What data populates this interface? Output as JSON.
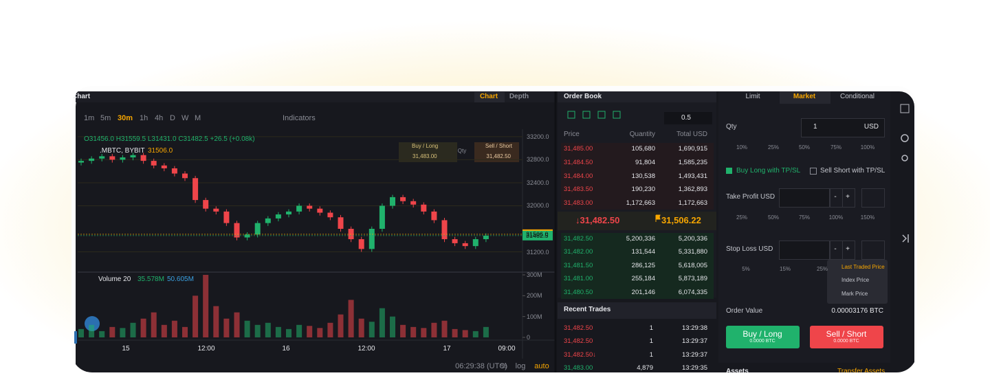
{
  "chart_panel": {
    "title": "Chart",
    "tabs": [
      "Chart",
      "Depth"
    ],
    "intervals": [
      "1m",
      "5m",
      "30m",
      "1h",
      "4h",
      "D",
      "W",
      "M"
    ],
    "active_interval": "30m",
    "indicators": "Indicators",
    "ohlc_summary": "O31456.0 H31559.5 L31431.0 C31482.5 +26.5 (+0.08k)",
    "symbol": ".MBTC, BYBIT",
    "symbol_price": "31506.0",
    "quick_trade": {
      "buy_label": "Buy / Long",
      "buy_price": "31,483.00",
      "qty": "Qty",
      "sell_label": "Sell / Short",
      "sell_price": "31,482.50"
    },
    "volume_label": "Volume 20",
    "volume_figures": [
      "35.578M",
      "50.605M"
    ],
    "x_labels": [
      "15",
      "12:00",
      "16",
      "12:00",
      "17",
      "09:00"
    ],
    "footer": [
      "06:29:38 (UTC)",
      "%",
      "log",
      "auto"
    ]
  },
  "chart_data": {
    "type": "candlestick",
    "up_color": "#20b26c",
    "down_color": "#ef454a",
    "grid": true,
    "ohlc": [
      [
        32750,
        32820,
        32700,
        32780
      ],
      [
        32780,
        32860,
        32730,
        32820
      ],
      [
        32820,
        32900,
        32770,
        32860
      ],
      [
        32860,
        32900,
        32750,
        32800
      ],
      [
        32800,
        32880,
        32750,
        32840
      ],
      [
        32840,
        32920,
        32790,
        32880
      ],
      [
        32880,
        32920,
        32730,
        32780
      ],
      [
        32780,
        32820,
        32650,
        32700
      ],
      [
        32700,
        32740,
        32600,
        32650
      ],
      [
        32650,
        32690,
        32510,
        32560
      ],
      [
        32560,
        32600,
        32430,
        32480
      ],
      [
        32480,
        32520,
        32050,
        32100
      ],
      [
        32100,
        32140,
        31900,
        31950
      ],
      [
        31950,
        31990,
        31850,
        31900
      ],
      [
        31900,
        31940,
        31650,
        31700
      ],
      [
        31700,
        31740,
        31400,
        31450
      ],
      [
        31450,
        31540,
        31400,
        31500
      ],
      [
        31500,
        31740,
        31450,
        31700
      ],
      [
        31700,
        31820,
        31650,
        31780
      ],
      [
        31780,
        31890,
        31730,
        31850
      ],
      [
        31850,
        31940,
        31800,
        31900
      ],
      [
        31900,
        32040,
        31850,
        32000
      ],
      [
        32000,
        32040,
        31900,
        31950
      ],
      [
        31950,
        31990,
        31830,
        31880
      ],
      [
        31880,
        31920,
        31750,
        31800
      ],
      [
        31800,
        31840,
        31550,
        31600
      ],
      [
        31600,
        31640,
        31370,
        31420
      ],
      [
        31420,
        31460,
        31200,
        31250
      ],
      [
        31250,
        31640,
        31200,
        31600
      ],
      [
        31600,
        32040,
        31550,
        32000
      ],
      [
        32000,
        32190,
        31950,
        32150
      ],
      [
        32150,
        32190,
        32030,
        32080
      ],
      [
        32080,
        32120,
        31970,
        32020
      ],
      [
        32020,
        32060,
        31850,
        31900
      ],
      [
        31900,
        31940,
        31700,
        31750
      ],
      [
        31750,
        31790,
        31370,
        31420
      ],
      [
        31420,
        31460,
        31300,
        31350
      ],
      [
        31350,
        31390,
        31250,
        31300
      ],
      [
        31300,
        31460,
        31250,
        31420
      ],
      [
        31420,
        31520,
        31370,
        31480
      ]
    ],
    "ylim": [
      30860,
      33330
    ],
    "yticks": [
      {
        "value": 33200,
        "label": "33200.0"
      },
      {
        "value": 32800,
        "label": "32800.0"
      },
      {
        "value": 32400,
        "label": "32400.0"
      },
      {
        "value": 32000,
        "label": "32000.0"
      },
      {
        "value": 31200,
        "label": "31200.0"
      }
    ],
    "price_tags": [
      {
        "value": 31506,
        "label": "31506.0",
        "color": "#f7a600"
      },
      {
        "value": 31482.5,
        "label": "31482.5",
        "color": "#20b26c"
      }
    ],
    "volume": [
      40,
      60,
      30,
      50,
      45,
      70,
      90,
      120,
      60,
      80,
      50,
      200,
      300,
      150,
      90,
      120,
      80,
      60,
      70,
      50,
      40,
      60,
      55,
      45,
      70,
      110,
      180,
      90,
      75,
      140,
      100,
      60,
      50,
      45,
      70,
      80,
      40,
      35,
      30,
      50
    ],
    "volume_ylim": [
      0,
      300
    ],
    "volume_ticks": [
      0,
      {
        "value": 100,
        "label": "100M"
      },
      {
        "value": 200,
        "label": "200M"
      },
      {
        "value": 300,
        "label": "300M"
      }
    ]
  },
  "order_book": {
    "title": "Order Book",
    "precision": "0.5",
    "columns": [
      "Price",
      "Quantity",
      "Total USD"
    ],
    "asks": [
      [
        "31,485.00",
        "105,680",
        "1,690,915"
      ],
      [
        "31,484.50",
        "91,804",
        "1,585,235"
      ],
      [
        "31,484.00",
        "130,538",
        "1,493,431"
      ],
      [
        "31,483.50",
        "190,230",
        "1,362,893"
      ],
      [
        "31,483.00",
        "1,172,663",
        "1,172,663"
      ]
    ],
    "last_price": "↓31,482.50",
    "mark_price": "31,506.22",
    "bids": [
      [
        "31,482.50",
        "5,200,336",
        "5,200,336"
      ],
      [
        "31,482.00",
        "131,544",
        "5,331,880"
      ],
      [
        "31,481.50",
        "286,125",
        "5,618,005"
      ],
      [
        "31,481.00",
        "255,184",
        "5,873,189"
      ],
      [
        "31,480.50",
        "201,146",
        "6,074,335"
      ]
    ]
  },
  "recent_trades": {
    "title": "Recent Trades",
    "rows": [
      {
        "price": "31,482.50",
        "qty": "1",
        "time": "13:29:38",
        "side": "sell"
      },
      {
        "price": "31,482.50",
        "qty": "1",
        "time": "13:29:37",
        "side": "sell"
      },
      {
        "price": "31,482.50↓",
        "qty": "1",
        "time": "13:29:37",
        "side": "sell"
      },
      {
        "price": "31,483.00",
        "qty": "4,879",
        "time": "13:29:35",
        "side": "buy"
      }
    ]
  },
  "order_form": {
    "tabs": [
      "Limit",
      "Market",
      "Conditional"
    ],
    "active_tab": "Market",
    "qty_label": "Qty",
    "qty_value": "1",
    "qty_unit": "USD",
    "qty_percents": [
      "10%",
      "25%",
      "50%",
      "75%",
      "100%"
    ],
    "tpsl": [
      "Buy Long with TP/SL",
      "Sell Short with TP/SL"
    ],
    "take_profit": "Take Profit USD",
    "step_buttons": [
      "-",
      "+"
    ],
    "tp_percents": [
      "25%",
      "50%",
      "75%",
      "100%",
      "150%"
    ],
    "stop_loss": "Stop Loss USD",
    "sl_percents": [
      "5%",
      "15%",
      "25%"
    ],
    "trigger_options": [
      "Last Traded Price",
      "Index Price",
      "Mark Price"
    ],
    "order_value_label": "Order Value",
    "order_value": "0.00003176 BTC",
    "buy": {
      "label": "Buy / Long",
      "cost": "0.0000 BTC"
    },
    "sell": {
      "label": "Sell / Short",
      "cost": "0.0000 BTC"
    },
    "assets": "Assets",
    "transfer": "Transfer Assets"
  }
}
